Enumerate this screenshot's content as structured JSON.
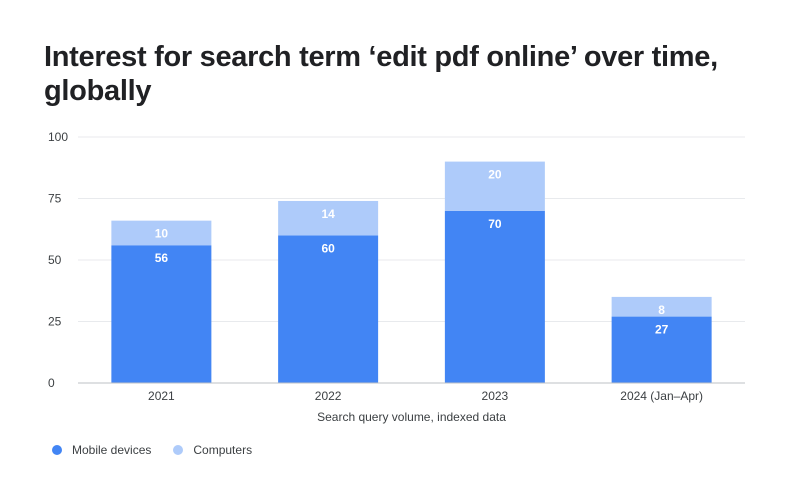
{
  "title": "Interest for search term ‘edit pdf online’ over time, globally",
  "chart_data": {
    "type": "bar",
    "stacked": true,
    "title": "Interest for search term ‘edit pdf online’ over time, globally",
    "xlabel": "Search query volume, indexed data",
    "ylabel": "",
    "ylim": [
      0,
      100
    ],
    "yticks": [
      0,
      25,
      50,
      75,
      100
    ],
    "grid": true,
    "legend_position": "bottom-left",
    "categories": [
      "2021",
      "2022",
      "2023",
      "2024 (Jan–Apr)"
    ],
    "series": [
      {
        "name": "Mobile devices",
        "values": [
          56,
          60,
          70,
          27
        ],
        "color": "#4285f4"
      },
      {
        "name": "Computers",
        "values": [
          10,
          14,
          20,
          8
        ],
        "color": "#aecbfa"
      }
    ]
  }
}
